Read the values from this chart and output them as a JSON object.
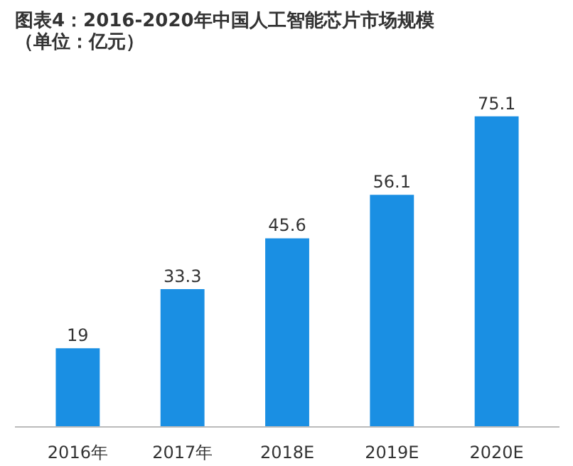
{
  "chart_data": {
    "type": "bar",
    "title": "图表4：2016-2020年中国人工智能芯片市场规模（单位：亿元）",
    "categories": [
      "2016年",
      "2017年",
      "2018E",
      "2019E",
      "2020E"
    ],
    "values": [
      19,
      33.3,
      45.6,
      56.1,
      75.1
    ],
    "color": "#1a8fe3",
    "data_labels": true
  }
}
